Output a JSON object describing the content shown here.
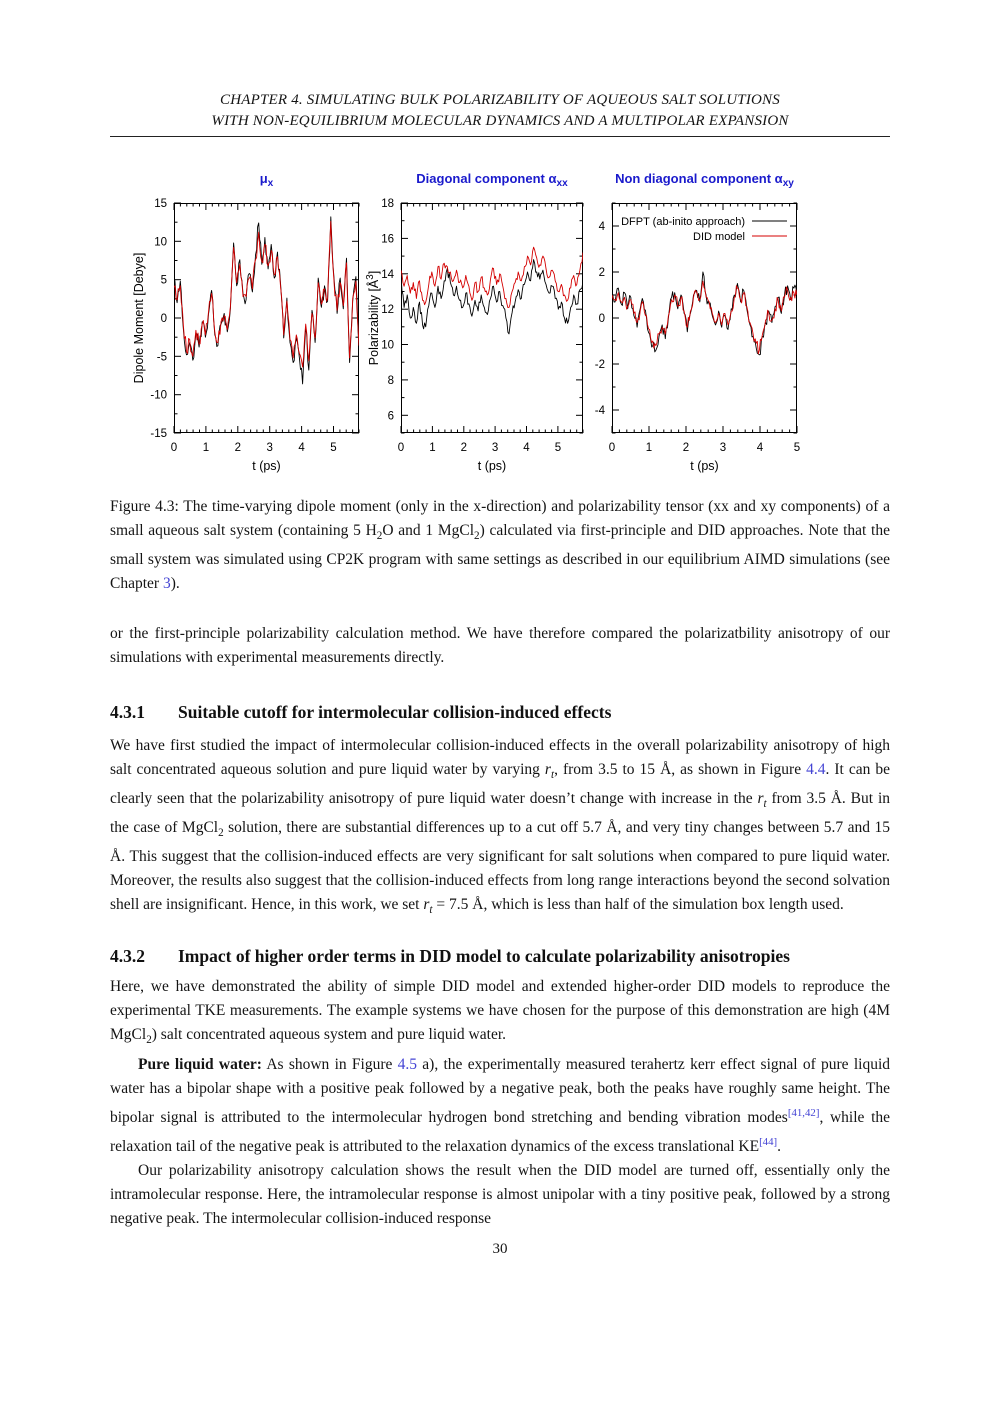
{
  "page": {
    "number": "30"
  },
  "header": {
    "line1": "CHAPTER 4.  SIMULATING BULK POLARIZABILITY OF AQUEOUS SALT SOLUTIONS",
    "line2": "WITH NON-EQUILIBRIUM MOLECULAR DYNAMICS AND A MULTIPOLAR EXPANSION"
  },
  "colors": {
    "chart_title_blue": "#1a1acc",
    "link_blue": "#4444d4",
    "series_black": "#000000",
    "series_red": "#d40000"
  },
  "figure": {
    "caption_runs": [
      {
        "t": "Figure 4.3: The time-varying dipole moment (only in the x-direction) and polarizability tensor (xx and xy components) of a small aqueous salt system (containing 5 H"
      },
      {
        "t": "2",
        "s": "sub"
      },
      {
        "t": "O and 1 MgCl"
      },
      {
        "t": "2",
        "s": "sub"
      },
      {
        "t": ") calculated via first-principle and DID approaches. Note that the small system was simulated using CP2K program with same settings as described in our equilibrium AIMD simulations (see Chapter "
      },
      {
        "t": "3",
        "s": "link"
      },
      {
        "t": ")."
      }
    ]
  },
  "sections": {
    "intro_runs": [
      {
        "t": "or the first-principle polarizability calculation method.  We have therefore compared the polarizatbility anisotropy of our simulations with experimental measurements directly."
      }
    ],
    "s431": {
      "number": "4.3.1",
      "title": "Suitable cutoff for intermolecular collision-induced effects",
      "body_runs": [
        {
          "t": "We have first studied the impact of intermolecular collision-induced effects in the overall polarizability anisotropy of high salt concentrated aqueous solution and pure liquid water by varying "
        },
        {
          "t": "r",
          "s": "it"
        },
        {
          "t": "t",
          "s": "itsub"
        },
        {
          "t": ", from 3.5 to 15 Å, as shown in Figure "
        },
        {
          "t": "4.4",
          "s": "link"
        },
        {
          "t": ".  It can be clearly seen that the polarizability anisotropy of pure liquid water doesn’t change with increase in the "
        },
        {
          "t": "r",
          "s": "it"
        },
        {
          "t": "t",
          "s": "itsub"
        },
        {
          "t": " from 3.5 Å. But in the case of MgCl"
        },
        {
          "t": "2",
          "s": "sub"
        },
        {
          "t": " solution, there are substantial differences up to a cut off 5.7 Å, and very tiny changes between 5.7 and 15 Å. This suggest that the collision-induced effects are very significant for salt solutions when compared to pure liquid water.  Moreover, the results also suggest that the collision-induced effects from long range interactions beyond the second solvation shell are insignificant.  Hence, in this work, we set "
        },
        {
          "t": "r",
          "s": "it"
        },
        {
          "t": "t",
          "s": "itsub"
        },
        {
          "t": " = 7.5 Å, which is less than half of the simulation box length used."
        }
      ]
    },
    "s432": {
      "number": "4.3.2",
      "title": "Impact of higher order terms in DID model to calculate polarizability anisotropies",
      "p1_runs": [
        {
          "t": "Here, we have demonstrated the ability of simple DID model and extended higher-order DID models to reproduce the experimental TKE measurements.  The example systems we have chosen for the purpose of this demonstration are high (4M MgCl"
        },
        {
          "t": "2",
          "s": "sub"
        },
        {
          "t": ") salt concentrated aqueous system and pure liquid water."
        }
      ],
      "p2_runs": [
        {
          "t": "Pure liquid water:",
          "s": "b"
        },
        {
          "t": "  As shown in Figure "
        },
        {
          "t": "4.5",
          "s": "link"
        },
        {
          "t": " a), the experimentally measured terahertz kerr effect signal of pure liquid water has a bipolar shape with a positive peak followed by a negative peak, both the peaks have roughly same height.  The bipolar signal is attributed to the intermolecular hydrogen bond stretching and bending vibration modes"
        },
        {
          "t": "[41,42]",
          "s": "suplink"
        },
        {
          "t": ", while the relaxation tail of the negative peak is attributed to the relaxation dynamics of the excess translational KE"
        },
        {
          "t": "[44]",
          "s": "suplink"
        },
        {
          "t": "."
        }
      ],
      "p3_runs": [
        {
          "t": "Our polarizability anisotropy calculation shows the result when the DID model are turned off, essentially only the intramolecular response.  Here, the intramolecular response is almost unipolar with a tiny positive peak, followed by a strong negative peak.  The intermolecular collision-induced response"
        }
      ]
    }
  },
  "chart_data": [
    {
      "type": "line",
      "title_runs": [
        {
          "t": "μ"
        },
        {
          "t": "x",
          "s": "sub"
        }
      ],
      "ylabel_runs": [
        {
          "t": "Dipole Moment [Debye]"
        }
      ],
      "xlabel": "t (ps)",
      "xlim": [
        0,
        5.8
      ],
      "ylim": [
        -15,
        15
      ],
      "xticks": [
        0,
        1,
        2,
        3,
        4,
        5
      ],
      "x_minor_step": 0.2,
      "yticks": [
        -15,
        -10,
        -5,
        0,
        5,
        10,
        15
      ],
      "y_minor_step": 2.5,
      "t_start": 0,
      "t_end": 5.8,
      "jitter": 1.1,
      "grid": false,
      "series": [
        {
          "name": "DFPT (ab-inito approach)",
          "color": "#000000",
          "values": [
            5.5,
            2.0,
            4.8,
            -1.5,
            -4.8,
            -3.2,
            -5.5,
            -2.0,
            -3.8,
            -0.5,
            -2.5,
            0.5,
            3.6,
            -2.2,
            -3.6,
            -0.8,
            0.6,
            -1.8,
            1.2,
            9.8,
            4.2,
            7.6,
            3.2,
            2.4,
            5.8,
            3.4,
            8.2,
            12.4,
            7.0,
            10.5,
            6.4,
            9.6,
            5.2,
            8.6,
            4.4,
            -2.6,
            2.6,
            -3.2,
            -5.8,
            -2.6,
            -5.2,
            -8.6,
            -1.2,
            -6.8,
            1.0,
            -3.2,
            5.2,
            1.4,
            4.2,
            2.2,
            13.2,
            5.4,
            0.6,
            5.2,
            1.2,
            7.8,
            -5.8,
            2.2,
            5.4,
            -4.2
          ]
        },
        {
          "name": "DID model",
          "color": "#d40000",
          "values": [
            4.0,
            2.4,
            4.2,
            -1.0,
            -4.4,
            -2.8,
            -5.0,
            -1.6,
            -3.4,
            -0.8,
            -2.2,
            0.8,
            3.2,
            -1.8,
            -3.2,
            -0.5,
            0.3,
            -1.5,
            1.5,
            9.2,
            4.6,
            7.0,
            2.8,
            2.8,
            5.2,
            3.8,
            7.6,
            11.2,
            7.4,
            9.6,
            6.8,
            8.8,
            5.6,
            8.0,
            4.0,
            -2.2,
            2.2,
            -2.8,
            -5.2,
            -2.2,
            -4.6,
            -6.4,
            -0.8,
            -5.6,
            0.6,
            -2.6,
            4.6,
            1.8,
            3.8,
            2.6,
            12.6,
            5.0,
            1.0,
            4.6,
            1.6,
            7.2,
            -5.2,
            2.6,
            4.8,
            -3.6
          ]
        }
      ]
    },
    {
      "type": "line",
      "title_runs": [
        {
          "t": "Diagonal component α"
        },
        {
          "t": "xx",
          "s": "sub"
        }
      ],
      "ylabel_runs": [
        {
          "t": "Polarizability [Å"
        },
        {
          "t": "3",
          "s": "sup"
        },
        {
          "t": "]"
        }
      ],
      "xlabel": "t (ps)",
      "xlim": [
        0,
        5.8
      ],
      "ylim": [
        5,
        18
      ],
      "xticks": [
        0,
        1,
        2,
        3,
        4,
        5
      ],
      "x_minor_step": 0.2,
      "yticks": [
        6,
        8,
        10,
        12,
        14,
        16,
        18
      ],
      "y_minor_step": 1,
      "t_start": 0,
      "t_end": 5.8,
      "jitter": 0.32,
      "grid": false,
      "series": [
        {
          "name": "DFPT (ab-inito approach)",
          "color": "#000000",
          "values": [
            13.9,
            12.1,
            12.8,
            11.5,
            12.1,
            11.2,
            12.4,
            11.1,
            11.0,
            12.2,
            12.9,
            12.1,
            13.3,
            12.6,
            13.6,
            14.3,
            13.5,
            12.8,
            13.3,
            12.5,
            12.1,
            12.9,
            12.3,
            11.6,
            12.5,
            11.9,
            12.8,
            12.1,
            11.7,
            12.6,
            13.3,
            12.4,
            13.0,
            12.2,
            11.5,
            10.6,
            11.8,
            12.4,
            13.1,
            12.6,
            13.4,
            14.1,
            13.6,
            14.8,
            14.1,
            13.7,
            14.2,
            13.4,
            12.9,
            13.3,
            12.6,
            12.0,
            12.4,
            11.5,
            11.2,
            12.1,
            12.8,
            12.3,
            13.1,
            13.6
          ]
        },
        {
          "name": "DID model",
          "color": "#d40000",
          "values": [
            14.2,
            13.3,
            13.9,
            12.9,
            13.5,
            12.6,
            13.6,
            12.5,
            12.4,
            13.4,
            14.1,
            13.3,
            14.4,
            13.7,
            14.6,
            14.4,
            14.1,
            13.6,
            14.2,
            13.5,
            13.2,
            13.9,
            13.3,
            12.5,
            13.5,
            13.0,
            13.8,
            13.2,
            12.8,
            13.7,
            14.3,
            13.4,
            14.0,
            13.3,
            12.6,
            12.1,
            13.0,
            13.5,
            14.1,
            13.6,
            14.4,
            15.0,
            14.5,
            15.5,
            14.9,
            14.5,
            15.0,
            14.3,
            13.8,
            14.2,
            13.6,
            13.0,
            13.4,
            12.8,
            12.5,
            13.2,
            13.9,
            13.4,
            14.2,
            15.2
          ]
        }
      ]
    },
    {
      "type": "line",
      "title_runs": [
        {
          "t": "Non diagonal component α"
        },
        {
          "t": "xy",
          "s": "sub"
        }
      ],
      "ylabel_runs": null,
      "xlabel": "t (ps)",
      "xlim": [
        0,
        5
      ],
      "ylim": [
        -5,
        5
      ],
      "xticks": [
        0,
        1,
        2,
        3,
        4,
        5
      ],
      "x_minor_step": 0.2,
      "yticks": [
        -4,
        -2,
        0,
        2,
        4
      ],
      "y_minor_step": 1,
      "t_start": 0,
      "t_end": 5,
      "jitter": 0.3,
      "grid": false,
      "legend": true,
      "series": [
        {
          "name": "DFPT (ab-inito approach)",
          "color": "#000000",
          "values": [
            1.2,
            0.7,
            1.3,
            0.6,
            1.1,
            0.4,
            0.9,
            0.1,
            -0.4,
            0.4,
            0.7,
            0.0,
            -0.7,
            -1.2,
            -1.4,
            -0.8,
            -0.3,
            -0.9,
            0.0,
            0.9,
            1.1,
            0.4,
            1.0,
            0.2,
            -0.6,
            0.2,
            1.0,
            1.2,
            0.7,
            2.0,
            1.0,
            0.6,
            0.1,
            -0.3,
            0.3,
            -0.4,
            0.1,
            -0.5,
            0.4,
            1.0,
            1.5,
            0.7,
            1.2,
            0.4,
            -0.3,
            -0.8,
            -1.3,
            -1.6,
            -0.8,
            -0.2,
            0.3,
            -0.2,
            0.5,
            0.9,
            0.2,
            1.0,
            1.4,
            0.8,
            1.3,
            1.1
          ]
        },
        {
          "name": "DID model",
          "color": "#d40000",
          "values": [
            1.0,
            0.8,
            1.1,
            0.7,
            0.9,
            0.5,
            0.8,
            0.2,
            -0.2,
            0.3,
            0.6,
            0.1,
            -0.5,
            -1.0,
            -1.2,
            -0.7,
            -0.4,
            -0.7,
            0.1,
            0.8,
            1.0,
            0.5,
            0.9,
            0.3,
            -0.4,
            0.3,
            0.9,
            1.1,
            0.8,
            1.6,
            0.9,
            0.7,
            0.2,
            -0.2,
            0.2,
            -0.3,
            0.2,
            -0.3,
            0.3,
            0.9,
            1.3,
            0.8,
            1.1,
            0.5,
            -0.2,
            -0.7,
            -1.1,
            -1.4,
            -0.7,
            -0.1,
            0.2,
            -0.1,
            0.4,
            0.8,
            0.3,
            0.9,
            1.2,
            0.9,
            1.1,
            1.0
          ]
        }
      ]
    }
  ]
}
